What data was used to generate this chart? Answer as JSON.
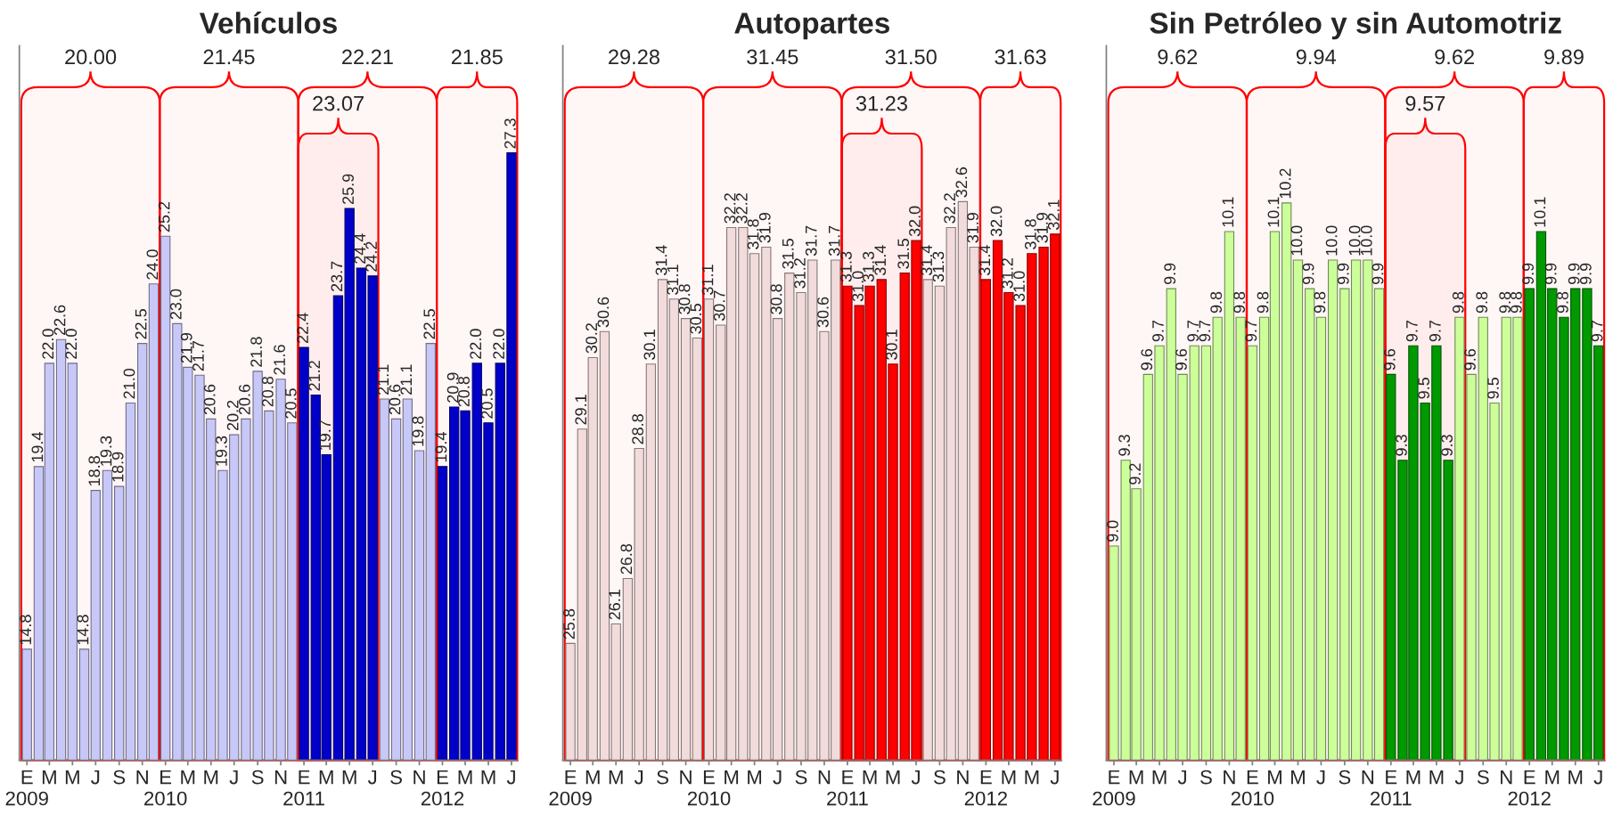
{
  "chart_data": [
    {
      "type": "bar",
      "title": "Vehículos",
      "x": [
        "2009-01",
        "2009-02",
        "2009-03",
        "2009-04",
        "2009-05",
        "2009-06",
        "2009-07",
        "2009-08",
        "2009-09",
        "2009-10",
        "2009-11",
        "2009-12",
        "2010-01",
        "2010-02",
        "2010-03",
        "2010-04",
        "2010-05",
        "2010-06",
        "2010-07",
        "2010-08",
        "2010-09",
        "2010-10",
        "2010-11",
        "2010-12",
        "2011-01",
        "2011-02",
        "2011-03",
        "2011-04",
        "2011-05",
        "2011-06",
        "2011-07",
        "2011-08",
        "2011-09",
        "2011-10",
        "2011-11",
        "2011-12",
        "2012-01",
        "2012-02",
        "2012-03",
        "2012-04",
        "2012-05",
        "2012-06",
        "2012-07"
      ],
      "values": [
        14.8,
        19.4,
        22.0,
        22.6,
        22.0,
        14.8,
        18.8,
        19.3,
        18.9,
        21.0,
        22.5,
        24.0,
        25.2,
        23.0,
        21.9,
        21.7,
        20.6,
        19.3,
        20.2,
        20.6,
        21.8,
        20.8,
        21.6,
        20.5,
        22.4,
        21.2,
        19.7,
        23.7,
        25.9,
        24.4,
        24.2,
        21.1,
        20.6,
        21.1,
        19.8,
        22.5,
        19.4,
        20.9,
        20.8,
        22.0,
        20.5,
        22.0,
        27.3
      ],
      "value_labels": [
        "14.8",
        "19.4",
        "22.0",
        "22.6",
        "22.0",
        "14.8",
        "18.8",
        "19.3",
        "18.9",
        "21.0",
        "22.5",
        "24.0",
        "25.2",
        "23.0",
        "21.9",
        "21.7",
        "20.6",
        "19.3",
        "20.2",
        "20.6",
        "21.8",
        "20.8",
        "21.6",
        "20.5",
        "22.4",
        "21.2",
        "19.7",
        "23.7",
        "25.9",
        "24.4",
        "24.2",
        "21.1",
        "20.6",
        "21.1",
        "19.8",
        "22.5",
        "19.4",
        "20.9",
        "20.8",
        "22.0",
        "20.5",
        "22.0",
        "27.3"
      ],
      "colors": [
        "#c8c8f8",
        "#c8c8f8",
        "#c8c8f8",
        "#c8c8f8",
        "#c8c8f8",
        "#c8c8f8",
        "#c8c8f8",
        "#c8c8f8",
        "#c8c8f8",
        "#c8c8f8",
        "#c8c8f8",
        "#c8c8f8",
        "#c8c8f8",
        "#c8c8f8",
        "#c8c8f8",
        "#c8c8f8",
        "#c8c8f8",
        "#c8c8f8",
        "#c8c8f8",
        "#c8c8f8",
        "#c8c8f8",
        "#c8c8f8",
        "#c8c8f8",
        "#c8c8f8",
        "#0000c8",
        "#0000c8",
        "#0000c8",
        "#0000c8",
        "#0000c8",
        "#0000c8",
        "#0000c8",
        "#c8c8f8",
        "#c8c8f8",
        "#c8c8f8",
        "#c8c8f8",
        "#c8c8f8",
        "#0000c8",
        "#0000c8",
        "#0000c8",
        "#0000c8",
        "#0000c8",
        "#0000c8",
        "#0000c8"
      ],
      "xlim": [
        "2008-12-12",
        "2012-07-18"
      ],
      "ylim": [
        12,
        30
      ],
      "tick_labels": "x",
      "xticks": [
        {
          "value": "2009-01",
          "label": "E\n2009"
        },
        {
          "value": "2009-03",
          "label": "M"
        },
        {
          "value": "2009-05",
          "label": "M"
        },
        {
          "value": "2009-07",
          "label": "J"
        },
        {
          "value": "2009-09",
          "label": "S"
        },
        {
          "value": "2009-11",
          "label": "N"
        },
        {
          "value": "2010-01",
          "label": "E\n2010"
        },
        {
          "value": "2010-03",
          "label": "M"
        },
        {
          "value": "2010-05",
          "label": "M"
        },
        {
          "value": "2010-07",
          "label": "J"
        },
        {
          "value": "2010-09",
          "label": "S"
        },
        {
          "value": "2010-11",
          "label": "N"
        },
        {
          "value": "2011-01",
          "label": "E\n2011"
        },
        {
          "value": "2011-03",
          "label": "M"
        },
        {
          "value": "2011-05",
          "label": "M"
        },
        {
          "value": "2011-07",
          "label": "J"
        },
        {
          "value": "2011-09",
          "label": "S"
        },
        {
          "value": "2011-11",
          "label": "N"
        },
        {
          "value": "2012-01",
          "label": "E\n2012"
        },
        {
          "value": "2012-03",
          "label": "M"
        },
        {
          "value": "2012-05",
          "label": "M"
        },
        {
          "value": "2012-07",
          "label": "J"
        }
      ],
      "bands": [
        {
          "axis": "x",
          "from": "2008-12-17",
          "to": "2009-12-17",
          "label": "20.00",
          "color": "#ff0000"
        },
        {
          "axis": "x",
          "from": "2009-12-17",
          "to": "2010-12-17",
          "label": "21.45",
          "color": "#ff0000"
        },
        {
          "axis": "x",
          "from": "2010-12-17",
          "to": "2011-12-17",
          "label": "22.21",
          "color": "#ff0000"
        },
        {
          "axis": "x",
          "from": "2011-12-17",
          "to": "2012-07-16",
          "label": "21.85",
          "color": "#ff0000"
        },
        {
          "axis": "x",
          "from": "2010-12-17",
          "to": "2011-07-16",
          "label": "23.07",
          "color": "#ff0000"
        }
      ]
    },
    {
      "type": "bar",
      "title": "Autopartes",
      "x": [
        "2009-01",
        "2009-02",
        "2009-03",
        "2009-04",
        "2009-05",
        "2009-06",
        "2009-07",
        "2009-08",
        "2009-09",
        "2009-10",
        "2009-11",
        "2009-12",
        "2010-01",
        "2010-02",
        "2010-03",
        "2010-04",
        "2010-05",
        "2010-06",
        "2010-07",
        "2010-08",
        "2010-09",
        "2010-10",
        "2010-11",
        "2010-12",
        "2011-01",
        "2011-02",
        "2011-03",
        "2011-04",
        "2011-05",
        "2011-06",
        "2011-07",
        "2011-08",
        "2011-09",
        "2011-10",
        "2011-11",
        "2011-12",
        "2012-01",
        "2012-02",
        "2012-03",
        "2012-04",
        "2012-05",
        "2012-06",
        "2012-07"
      ],
      "values": [
        25.8,
        29.1,
        30.2,
        30.6,
        26.1,
        26.8,
        28.8,
        30.1,
        31.4,
        31.1,
        30.8,
        30.5,
        31.1,
        30.7,
        32.2,
        32.2,
        31.8,
        31.9,
        30.8,
        31.5,
        31.2,
        31.7,
        30.6,
        31.7,
        31.3,
        31.0,
        31.3,
        31.4,
        30.1,
        31.5,
        32.0,
        31.4,
        31.3,
        32.2,
        32.6,
        31.9,
        31.4,
        32.0,
        31.2,
        31.0,
        31.8,
        31.9,
        32.1
      ],
      "value_labels": [
        "25.8",
        "29.1",
        "30.2",
        "30.6",
        "26.1",
        "26.8",
        "28.8",
        "30.1",
        "31.4",
        "31.1",
        "30.8",
        "30.5",
        "31.1",
        "30.7",
        "32.2",
        "32.2",
        "31.8",
        "31.9",
        "30.8",
        "31.5",
        "31.2",
        "31.7",
        "30.6",
        "31.7",
        "31.3",
        "31.0",
        "31.3",
        "31.4",
        "30.1",
        "31.5",
        "32.0",
        "31.4",
        "31.3",
        "32.2",
        "32.6",
        "31.9",
        "31.4",
        "32.0",
        "31.2",
        "31.0",
        "31.8",
        "31.9",
        "32.1"
      ],
      "colors": [
        "#f2dcdb",
        "#f2dcdb",
        "#f2dcdb",
        "#f2dcdb",
        "#f2dcdb",
        "#f2dcdb",
        "#f2dcdb",
        "#f2dcdb",
        "#f2dcdb",
        "#f2dcdb",
        "#f2dcdb",
        "#f2dcdb",
        "#f2dcdb",
        "#f2dcdb",
        "#f2dcdb",
        "#f2dcdb",
        "#f2dcdb",
        "#f2dcdb",
        "#f2dcdb",
        "#f2dcdb",
        "#f2dcdb",
        "#f2dcdb",
        "#f2dcdb",
        "#f2dcdb",
        "#ff0000",
        "#ff0000",
        "#ff0000",
        "#ff0000",
        "#ff0000",
        "#ff0000",
        "#ff0000",
        "#f2dcdb",
        "#f2dcdb",
        "#f2dcdb",
        "#f2dcdb",
        "#f2dcdb",
        "#ff0000",
        "#ff0000",
        "#ff0000",
        "#ff0000",
        "#ff0000",
        "#ff0000",
        "#ff0000"
      ],
      "xlim": [
        "2008-12-12",
        "2012-07-18"
      ],
      "ylim": [
        24,
        35
      ],
      "tick_labels": "x",
      "xticks": [
        {
          "value": "2009-01",
          "label": "E\n2009"
        },
        {
          "value": "2009-03",
          "label": "M"
        },
        {
          "value": "2009-05",
          "label": "M"
        },
        {
          "value": "2009-07",
          "label": "J"
        },
        {
          "value": "2009-09",
          "label": "S"
        },
        {
          "value": "2009-11",
          "label": "N"
        },
        {
          "value": "2010-01",
          "label": "E\n2010"
        },
        {
          "value": "2010-03",
          "label": "M"
        },
        {
          "value": "2010-05",
          "label": "M"
        },
        {
          "value": "2010-07",
          "label": "J"
        },
        {
          "value": "2010-09",
          "label": "S"
        },
        {
          "value": "2010-11",
          "label": "N"
        },
        {
          "value": "2011-01",
          "label": "E\n2011"
        },
        {
          "value": "2011-03",
          "label": "M"
        },
        {
          "value": "2011-05",
          "label": "M"
        },
        {
          "value": "2011-07",
          "label": "J"
        },
        {
          "value": "2011-09",
          "label": "S"
        },
        {
          "value": "2011-11",
          "label": "N"
        },
        {
          "value": "2012-01",
          "label": "E\n2012"
        },
        {
          "value": "2012-03",
          "label": "M"
        },
        {
          "value": "2012-05",
          "label": "M"
        },
        {
          "value": "2012-07",
          "label": "J"
        }
      ],
      "bands": [
        {
          "axis": "x",
          "from": "2008-12-17",
          "to": "2009-12-17",
          "label": "29.28",
          "color": "#ff0000"
        },
        {
          "axis": "x",
          "from": "2009-12-17",
          "to": "2010-12-17",
          "label": "31.45",
          "color": "#ff0000"
        },
        {
          "axis": "x",
          "from": "2010-12-17",
          "to": "2011-12-17",
          "label": "31.50",
          "color": "#ff0000"
        },
        {
          "axis": "x",
          "from": "2011-12-17",
          "to": "2012-07-16",
          "label": "31.63",
          "color": "#ff0000"
        },
        {
          "axis": "x",
          "from": "2010-12-17",
          "to": "2011-07-16",
          "label": "31.23",
          "color": "#ff0000"
        }
      ]
    },
    {
      "type": "bar",
      "title": "Sin Petróleo y sin Automotriz",
      "x": [
        "2009-01",
        "2009-02",
        "2009-03",
        "2009-04",
        "2009-05",
        "2009-06",
        "2009-07",
        "2009-08",
        "2009-09",
        "2009-10",
        "2009-11",
        "2009-12",
        "2010-01",
        "2010-02",
        "2010-03",
        "2010-04",
        "2010-05",
        "2010-06",
        "2010-07",
        "2010-08",
        "2010-09",
        "2010-10",
        "2010-11",
        "2010-12",
        "2011-01",
        "2011-02",
        "2011-03",
        "2011-04",
        "2011-05",
        "2011-06",
        "2011-07",
        "2011-08",
        "2011-09",
        "2011-10",
        "2011-11",
        "2011-12",
        "2012-01",
        "2012-02",
        "2012-03",
        "2012-04",
        "2012-05",
        "2012-06",
        "2012-07"
      ],
      "values": [
        9.0,
        9.3,
        9.2,
        9.6,
        9.7,
        9.9,
        9.6,
        9.7,
        9.7,
        9.8,
        10.1,
        9.8,
        9.7,
        9.8,
        10.1,
        10.2,
        10.0,
        9.9,
        9.8,
        10.0,
        9.9,
        10.0,
        10.0,
        9.9,
        9.6,
        9.3,
        9.7,
        9.5,
        9.7,
        9.3,
        9.8,
        9.6,
        9.8,
        9.5,
        9.8,
        9.8,
        9.9,
        10.1,
        9.9,
        9.8,
        9.9,
        9.9,
        9.7
      ],
      "value_labels": [
        "9.0",
        "9.3",
        "9.2",
        "9.6",
        "9.7",
        "9.9",
        "9.6",
        "9.7",
        "9.7",
        "9.8",
        "10.1",
        "9.8",
        "9.7",
        "9.8",
        "10.1",
        "10.2",
        "10.0",
        "9.9",
        "9.8",
        "10.0",
        "9.9",
        "10.0",
        "10.0",
        "9.9",
        "9.6",
        "9.3",
        "9.7",
        "9.5",
        "9.7",
        "9.3",
        "9.8",
        "9.6",
        "9.8",
        "9.5",
        "9.8",
        "9.8",
        "9.9",
        "10.1",
        "9.9",
        "9.8",
        "9.9",
        "9.9",
        "9.7"
      ],
      "colors": [
        "#ccff99",
        "#ccff99",
        "#ccff99",
        "#ccff99",
        "#ccff99",
        "#ccff99",
        "#ccff99",
        "#ccff99",
        "#ccff99",
        "#ccff99",
        "#ccff99",
        "#ccff99",
        "#ccff99",
        "#ccff99",
        "#ccff99",
        "#ccff99",
        "#ccff99",
        "#ccff99",
        "#ccff99",
        "#ccff99",
        "#ccff99",
        "#ccff99",
        "#ccff99",
        "#ccff99",
        "#009900",
        "#009900",
        "#009900",
        "#009900",
        "#009900",
        "#009900",
        "#ccff99",
        "#ccff99",
        "#ccff99",
        "#ccff99",
        "#ccff99",
        "#ccff99",
        "#009900",
        "#009900",
        "#009900",
        "#009900",
        "#009900",
        "#009900",
        "#009900"
      ],
      "xlim": [
        "2008-12-12",
        "2012-07-18"
      ],
      "ylim": [
        8.25,
        10.75
      ],
      "tick_labels": "x",
      "xticks": [
        {
          "value": "2009-01",
          "label": "E\n2009"
        },
        {
          "value": "2009-03",
          "label": "M"
        },
        {
          "value": "2009-05",
          "label": "M"
        },
        {
          "value": "2009-07",
          "label": "J"
        },
        {
          "value": "2009-09",
          "label": "S"
        },
        {
          "value": "2009-11",
          "label": "N"
        },
        {
          "value": "2010-01",
          "label": "E\n2010"
        },
        {
          "value": "2010-03",
          "label": "M"
        },
        {
          "value": "2010-05",
          "label": "M"
        },
        {
          "value": "2010-07",
          "label": "J"
        },
        {
          "value": "2010-09",
          "label": "S"
        },
        {
          "value": "2010-11",
          "label": "N"
        },
        {
          "value": "2011-01",
          "label": "E\n2011"
        },
        {
          "value": "2011-03",
          "label": "M"
        },
        {
          "value": "2011-05",
          "label": "M"
        },
        {
          "value": "2011-07",
          "label": "J"
        },
        {
          "value": "2011-09",
          "label": "S"
        },
        {
          "value": "2011-11",
          "label": "N"
        },
        {
          "value": "2012-01",
          "label": "E\n2012"
        },
        {
          "value": "2012-03",
          "label": "M"
        },
        {
          "value": "2012-05",
          "label": "M"
        },
        {
          "value": "2012-07",
          "label": "J"
        }
      ],
      "bands": [
        {
          "axis": "x",
          "from": "2008-12-17",
          "to": "2009-12-17",
          "label": "9.62",
          "color": "#ff0000"
        },
        {
          "axis": "x",
          "from": "2009-12-17",
          "to": "2010-12-17",
          "label": "9.94",
          "color": "#ff0000"
        },
        {
          "axis": "x",
          "from": "2010-12-17",
          "to": "2011-12-17",
          "label": "9.62",
          "color": "#ff0000"
        },
        {
          "axis": "x",
          "from": "2011-12-17",
          "to": "2012-07-16",
          "label": "9.89",
          "color": "#ff0000"
        },
        {
          "axis": "x",
          "from": "2010-12-17",
          "to": "2011-07-16",
          "label": "9.57",
          "color": "#ff0000"
        }
      ]
    }
  ]
}
